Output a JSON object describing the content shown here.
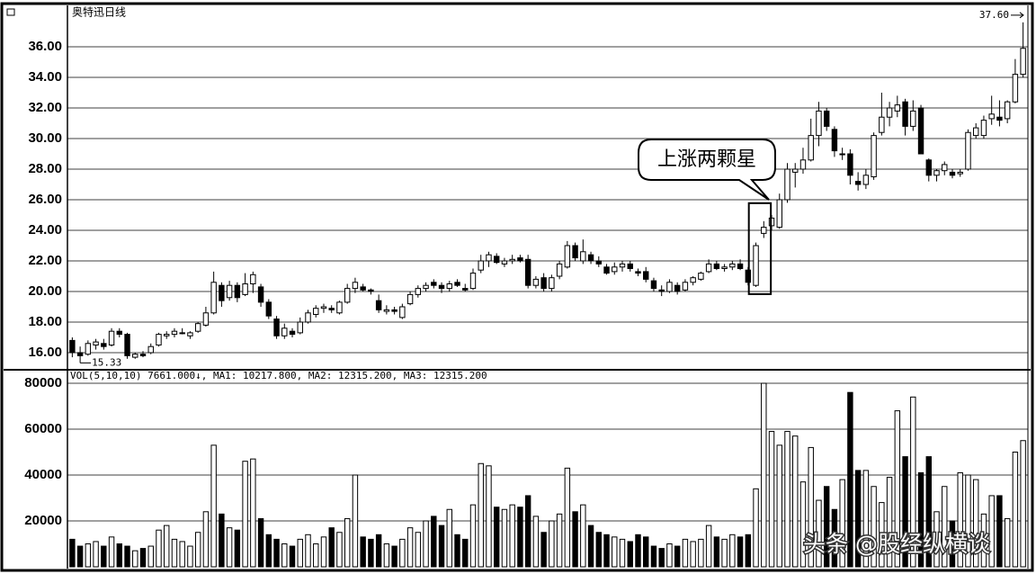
{
  "chart_data": {
    "type": "candlestick",
    "title": "奥特迅日线",
    "annotation": "上涨两颗星",
    "watermark": "头条 @股经纵横谈",
    "max_label": {
      "value": 37.6,
      "label": "37.60"
    },
    "min_label": {
      "value": 15.33,
      "label": "15.33"
    },
    "up_color": "#ffffff",
    "down_color": "#000000",
    "ylim": [
      14.94,
      38.59
    ],
    "yticks": [
      {
        "value": 16,
        "label": "16.00"
      },
      {
        "value": 18,
        "label": "18.00"
      },
      {
        "value": 20,
        "label": "20.00"
      },
      {
        "value": 22,
        "label": "22.00"
      },
      {
        "value": 24,
        "label": "24.00"
      },
      {
        "value": 26,
        "label": "26.00"
      },
      {
        "value": 28,
        "label": "28.00"
      },
      {
        "value": 30,
        "label": "30.00"
      },
      {
        "value": 32,
        "label": "32.00"
      },
      {
        "value": 34,
        "label": "34.00"
      },
      {
        "value": 36,
        "label": "36.00"
      }
    ],
    "candles": [
      [
        16.8,
        17,
        15.7,
        16.0
      ],
      [
        16.0,
        16.4,
        15.33,
        15.8
      ],
      [
        15.9,
        16.8,
        15.8,
        16.6
      ],
      [
        16.5,
        16.9,
        16.2,
        16.7
      ],
      [
        16.6,
        16.9,
        16.2,
        16.4
      ],
      [
        16.5,
        17.6,
        16.4,
        17.4
      ],
      [
        17.4,
        17.6,
        17.0,
        17.2
      ],
      [
        17.2,
        17.3,
        15.6,
        15.8
      ],
      [
        15.7,
        16.0,
        15.6,
        15.9
      ],
      [
        15.9,
        16.1,
        15.7,
        15.8
      ],
      [
        16.0,
        16.6,
        15.9,
        16.4
      ],
      [
        16.5,
        17.3,
        16.4,
        17.2
      ],
      [
        17.1,
        17.4,
        16.9,
        17.2
      ],
      [
        17.2,
        17.6,
        17.0,
        17.4
      ],
      [
        17.3,
        17.6,
        17.2,
        17.3
      ],
      [
        17.1,
        17.4,
        16.9,
        17.3
      ],
      [
        17.4,
        18.0,
        17.3,
        17.9
      ],
      [
        17.8,
        19.0,
        17.7,
        18.6
      ],
      [
        18.6,
        21.3,
        18.5,
        20.6
      ],
      [
        20.4,
        20.6,
        19.0,
        19.4
      ],
      [
        19.6,
        20.7,
        19.4,
        20.4
      ],
      [
        20.4,
        20.6,
        19.3,
        19.6
      ],
      [
        19.8,
        21.2,
        19.7,
        20.5
      ],
      [
        20.5,
        21.3,
        19.9,
        21.1
      ],
      [
        20.3,
        20.5,
        19.0,
        19.3
      ],
      [
        19.3,
        19.5,
        18.2,
        18.4
      ],
      [
        18.2,
        18.4,
        16.9,
        17.1
      ],
      [
        17.1,
        17.9,
        16.9,
        17.6
      ],
      [
        17.4,
        17.6,
        17.0,
        17.2
      ],
      [
        17.3,
        18.3,
        17.2,
        18.0
      ],
      [
        18.0,
        18.8,
        17.9,
        18.6
      ],
      [
        18.5,
        19.1,
        18.3,
        18.9
      ],
      [
        18.9,
        19.2,
        18.6,
        19.0
      ],
      [
        18.9,
        19.1,
        18.6,
        18.8
      ],
      [
        18.6,
        19.4,
        18.5,
        19.3
      ],
      [
        19.3,
        20.5,
        19.2,
        20.2
      ],
      [
        20.2,
        20.9,
        19.9,
        20.6
      ],
      [
        20.3,
        20.5,
        20.0,
        20.1
      ],
      [
        20.1,
        20.2,
        19.8,
        20.0
      ],
      [
        19.4,
        19.8,
        18.6,
        18.8
      ],
      [
        18.7,
        19.1,
        18.5,
        18.8
      ],
      [
        18.8,
        19.0,
        18.5,
        18.7
      ],
      [
        18.3,
        19.2,
        18.2,
        19.0
      ],
      [
        19.2,
        20.0,
        19.1,
        19.8
      ],
      [
        19.8,
        20.4,
        19.6,
        20.2
      ],
      [
        20.2,
        20.6,
        20.0,
        20.4
      ],
      [
        20.6,
        20.8,
        20.2,
        20.4
      ],
      [
        20.4,
        20.6,
        19.9,
        20.2
      ],
      [
        20.2,
        20.7,
        20.0,
        20.5
      ],
      [
        20.6,
        20.8,
        20.3,
        20.4
      ],
      [
        20.2,
        20.5,
        20.0,
        20.1
      ],
      [
        20.2,
        21.5,
        20.1,
        21.2
      ],
      [
        21.4,
        22.4,
        21.2,
        22.0
      ],
      [
        22.0,
        22.6,
        21.6,
        22.4
      ],
      [
        22.3,
        22.5,
        21.8,
        21.9
      ],
      [
        21.8,
        22.2,
        21.6,
        22.0
      ],
      [
        22.0,
        22.4,
        21.8,
        22.1
      ],
      [
        22.2,
        22.4,
        21.9,
        22.0
      ],
      [
        22.1,
        22.4,
        20.2,
        20.4
      ],
      [
        20.4,
        21.0,
        20.2,
        20.8
      ],
      [
        20.9,
        21.2,
        20.0,
        20.2
      ],
      [
        20.2,
        21.1,
        20.0,
        20.9
      ],
      [
        21.0,
        22.0,
        20.8,
        21.8
      ],
      [
        21.6,
        23.3,
        21.5,
        23.0
      ],
      [
        23.0,
        23.2,
        22.0,
        22.2
      ],
      [
        22.0,
        23.4,
        21.8,
        22.6
      ],
      [
        22.4,
        22.6,
        21.8,
        22.0
      ],
      [
        22.0,
        22.3,
        21.6,
        21.8
      ],
      [
        21.6,
        21.8,
        21.1,
        21.2
      ],
      [
        21.3,
        21.9,
        21.1,
        21.6
      ],
      [
        21.6,
        22.0,
        21.3,
        21.8
      ],
      [
        21.8,
        22.0,
        21.3,
        21.5
      ],
      [
        21.3,
        21.5,
        21.0,
        21.2
      ],
      [
        21.3,
        21.6,
        20.6,
        20.8
      ],
      [
        20.7,
        20.9,
        20.0,
        20.2
      ],
      [
        20.1,
        20.4,
        19.7,
        20.0
      ],
      [
        20.0,
        20.8,
        19.9,
        20.6
      ],
      [
        20.4,
        20.6,
        19.8,
        20.0
      ],
      [
        20.1,
        20.8,
        20.0,
        20.6
      ],
      [
        20.6,
        21.0,
        20.4,
        20.9
      ],
      [
        20.8,
        21.3,
        20.7,
        21.2
      ],
      [
        21.3,
        22.1,
        21.2,
        21.8
      ],
      [
        21.8,
        22.0,
        21.4,
        21.5
      ],
      [
        21.5,
        21.8,
        21.3,
        21.6
      ],
      [
        21.6,
        22.0,
        21.4,
        21.8
      ],
      [
        21.8,
        22.1,
        21.4,
        21.5
      ],
      [
        21.4,
        21.6,
        20.4,
        20.6
      ],
      [
        20.4,
        23.2,
        20.3,
        23.0
      ],
      [
        23.8,
        24.6,
        23.5,
        24.2
      ],
      [
        24.3,
        25.0,
        24.0,
        24.8
      ],
      [
        24.2,
        26.4,
        24.1,
        26.0
      ],
      [
        26.0,
        28.4,
        25.8,
        28.0
      ],
      [
        27.8,
        28.4,
        26.8,
        28.0
      ],
      [
        28.0,
        29.4,
        27.7,
        28.6
      ],
      [
        28.6,
        31.3,
        28.5,
        30.2
      ],
      [
        30.2,
        32.4,
        29.5,
        31.8
      ],
      [
        31.8,
        32.0,
        30.5,
        30.8
      ],
      [
        30.6,
        30.8,
        28.8,
        29.2
      ],
      [
        29.0,
        29.4,
        28.6,
        29.0
      ],
      [
        29.0,
        29.3,
        27.0,
        27.6
      ],
      [
        27.2,
        27.8,
        26.6,
        27.0
      ],
      [
        27.0,
        28.0,
        26.7,
        27.6
      ],
      [
        27.5,
        30.4,
        27.3,
        30.2
      ],
      [
        30.4,
        33.0,
        30.2,
        31.4
      ],
      [
        31.4,
        32.4,
        30.8,
        32.0
      ],
      [
        31.8,
        32.8,
        31.4,
        32.2
      ],
      [
        32.4,
        32.6,
        30.2,
        30.8
      ],
      [
        30.8,
        32.5,
        30.5,
        31.8
      ],
      [
        32.0,
        32.2,
        29.0,
        29.0
      ],
      [
        28.6,
        28.7,
        27.2,
        27.6
      ],
      [
        27.6,
        28.0,
        27.2,
        27.9
      ],
      [
        27.9,
        28.5,
        27.6,
        28.3
      ],
      [
        27.8,
        28.0,
        27.4,
        27.6
      ],
      [
        27.7,
        28.0,
        27.5,
        27.8
      ],
      [
        28.0,
        30.6,
        27.9,
        30.4
      ],
      [
        30.2,
        31.0,
        30.0,
        30.7
      ],
      [
        30.2,
        31.5,
        30.0,
        31.2
      ],
      [
        31.3,
        32.8,
        30.9,
        31.6
      ],
      [
        31.4,
        32.5,
        30.8,
        31.2
      ],
      [
        31.3,
        32.5,
        31.0,
        32.4
      ],
      [
        32.4,
        35.2,
        32.3,
        34.2
      ],
      [
        34.2,
        37.6,
        34.0,
        35.9
      ]
    ],
    "highlight": [
      87,
      88
    ],
    "volume_title": "VOL(5,10,10) 7661.000↓, MA1: 10217.800, MA2: 12315.200, MA3: 12315.200",
    "vlim": [
      0,
      85490
    ],
    "vticks": [
      20000,
      40000,
      60000,
      80000
    ],
    "volumes": [
      12000,
      9000,
      10000,
      11000,
      9000,
      13000,
      10000,
      9000,
      7000,
      8000,
      9000,
      16000,
      18000,
      12000,
      11000,
      9000,
      15000,
      24000,
      53000,
      23000,
      17000,
      16000,
      46000,
      47000,
      21000,
      14000,
      12000,
      10000,
      9000,
      12000,
      14000,
      10000,
      13000,
      17000,
      15000,
      21000,
      40000,
      13000,
      12000,
      14000,
      10000,
      9000,
      12000,
      17000,
      15000,
      20000,
      22000,
      18000,
      25000,
      14000,
      12000,
      27000,
      45000,
      44000,
      26000,
      25000,
      27000,
      26000,
      31000,
      22000,
      15000,
      20000,
      23000,
      43000,
      24000,
      27000,
      18000,
      15000,
      14000,
      13000,
      12000,
      11000,
      14000,
      13000,
      9000,
      8000,
      10000,
      9000,
      12000,
      11000,
      12000,
      18000,
      13000,
      12000,
      14000,
      13000,
      14000,
      34000,
      80000,
      59000,
      53000,
      59000,
      57000,
      37000,
      52000,
      29000,
      35000,
      25000,
      38000,
      76000,
      42000,
      42000,
      35000,
      28000,
      39000,
      68000,
      48000,
      74000,
      41000,
      48000,
      24000,
      35000,
      20000,
      41000,
      40000,
      38000,
      23000,
      31000,
      31000,
      21000,
      50000,
      55000
    ]
  }
}
